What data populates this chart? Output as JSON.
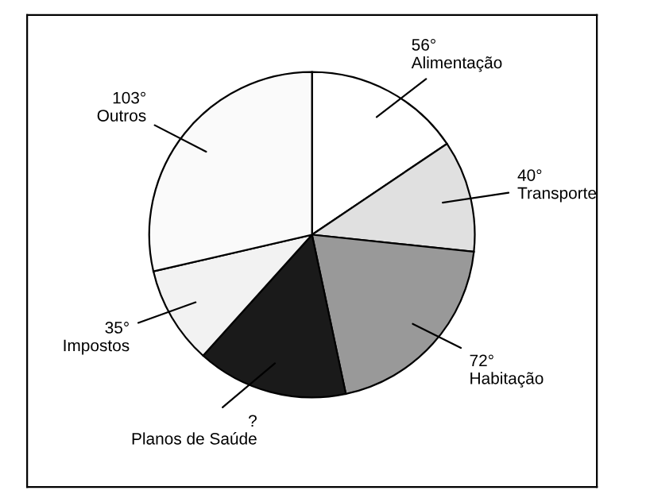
{
  "chart_data": {
    "type": "pie",
    "categories": [
      "Alimentação",
      "Transporte",
      "Habitação",
      "Planos de Saúde",
      "Impostos",
      "Outros"
    ],
    "values": [
      56,
      40,
      72,
      54,
      35,
      103
    ],
    "colors": [
      "#ffffff",
      "#e0e0e0",
      "#999999",
      "#1a1a1a",
      "#f2f2f2",
      "#fafafa"
    ],
    "value_labels": [
      "56°",
      "40°",
      "72°",
      "?",
      "35°",
      "103°"
    ],
    "legend": false
  }
}
